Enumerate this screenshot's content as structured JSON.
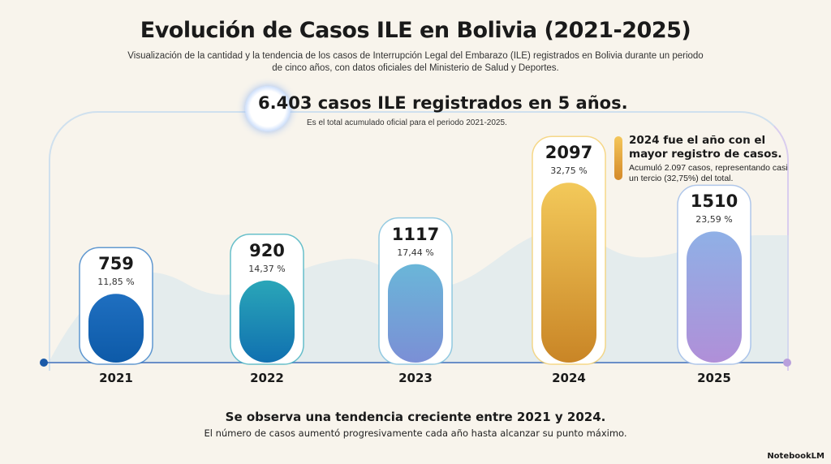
{
  "header": {
    "title": "Evolución de Casos ILE en Bolivia (2021-2025)",
    "subtitle": "Visualización de la cantidad y la tendencia de los casos de Interrupción Legal del Embarazo (ILE) registrados en Bolivia durante un periodo de cinco años, con datos oficiales del Ministerio de Salud y Deportes."
  },
  "summary": {
    "total": "6.403 casos ILE registrados en 5 años.",
    "subtitle": "Es el total acumulado oficial para el periodo 2021-2025."
  },
  "highlight": {
    "title": "2024 fue el año con el mayor registro de casos.",
    "text": "Acumuló 2.097 casos, representando casi un tercio (32,75%) del total."
  },
  "chart_data": {
    "type": "bar",
    "title": "Evolución de Casos ILE en Bolivia (2021-2025)",
    "categories": [
      "2021",
      "2022",
      "2023",
      "2024",
      "2025"
    ],
    "values": [
      759,
      920,
      1117,
      2097,
      1510
    ],
    "value_labels": [
      "759",
      "920",
      "1117",
      "2097",
      "1510"
    ],
    "percent_labels": [
      "11,85 %",
      "14,37 %",
      "17,44 %",
      "32,75 %",
      "23,59 %"
    ],
    "colors": [
      [
        "#1f6fc0",
        "#0d5aa8"
      ],
      [
        "#2aa6b8",
        "#1070b0"
      ],
      [
        "#6ab6d8",
        "#7b8fd6"
      ],
      [
        "#f3c95a",
        "#c98526"
      ],
      [
        "#8fb0e6",
        "#b08fd8"
      ]
    ]
  },
  "conclusion": {
    "title": "Se observa una tendencia creciente entre 2021 y 2024.",
    "text": "El número de casos aumentó progresivamente cada año hasta alcanzar su punto máximo."
  },
  "brand": "NotebookLM"
}
